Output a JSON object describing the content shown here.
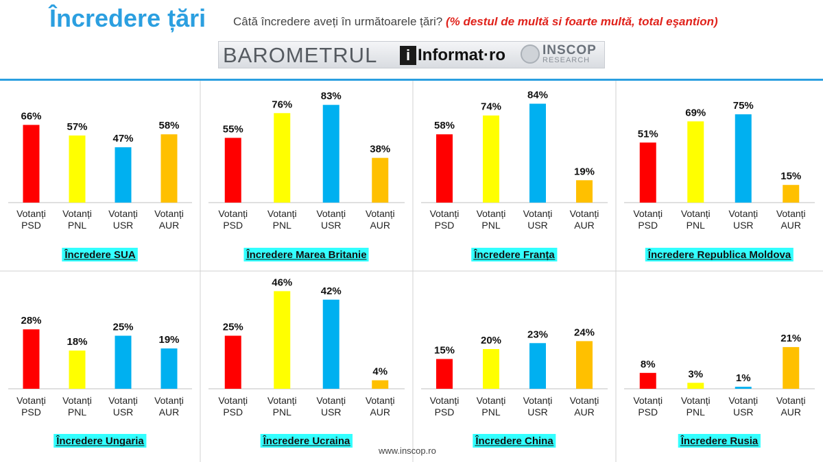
{
  "header": {
    "title": "Încredere țări",
    "question": "Câtă încredere aveți în următoarele țări?",
    "note": "(%  destul de multă si foarte multă,  total eşantion)"
  },
  "logos": {
    "barometrul": "BAROMETRUL",
    "informat_i": "i",
    "informat_text": "Informat·ro",
    "inscop": "INSCOP",
    "inscop_sub": "RESEARCH"
  },
  "footer": {
    "url": "www.inscop.ro"
  },
  "colors": {
    "PSD": "#ff0000",
    "PNL": "#ffff00",
    "USR": "#00b0f0",
    "AUR": "#ffc000",
    "title_bg": "#33ffff"
  },
  "chart_data": [
    {
      "type": "bar",
      "title": "Încredere SUA",
      "categories": [
        "Votanți PSD",
        "Votanți PNL",
        "Votanți USR",
        "Votanți AUR"
      ],
      "values": [
        66,
        57,
        47,
        58
      ],
      "value_labels": [
        "66%",
        "57%",
        "47%",
        "58%"
      ],
      "colors": [
        "#ff0000",
        "#ffff00",
        "#00b0f0",
        "#ffc000"
      ]
    },
    {
      "type": "bar",
      "title": "Încredere Marea Britanie",
      "categories": [
        "Votanți PSD",
        "Votanți PNL",
        "Votanți USR",
        "Votanți AUR"
      ],
      "values": [
        55,
        76,
        83,
        38
      ],
      "value_labels": [
        "55%",
        "76%",
        "83%",
        "38%"
      ],
      "colors": [
        "#ff0000",
        "#ffff00",
        "#00b0f0",
        "#ffc000"
      ]
    },
    {
      "type": "bar",
      "title": "Încredere Franța",
      "categories": [
        "Votanți PSD",
        "Votanți PNL",
        "Votanți USR",
        "Votanți AUR"
      ],
      "values": [
        58,
        74,
        84,
        19
      ],
      "value_labels": [
        "58%",
        "74%",
        "84%",
        "19%"
      ],
      "colors": [
        "#ff0000",
        "#ffff00",
        "#00b0f0",
        "#ffc000"
      ]
    },
    {
      "type": "bar",
      "title": "Încredere Republica Moldova",
      "categories": [
        "Votanți PSD",
        "Votanți PNL",
        "Votanți USR",
        "Votanți AUR"
      ],
      "values": [
        51,
        69,
        75,
        15
      ],
      "value_labels": [
        "51%",
        "69%",
        "75%",
        "15%"
      ],
      "colors": [
        "#ff0000",
        "#ffff00",
        "#00b0f0",
        "#ffc000"
      ]
    },
    {
      "type": "bar",
      "title": "Încredere Ungaria",
      "categories": [
        "Votanți PSD",
        "Votanți PNL",
        "Votanți USR",
        "Votanți AUR"
      ],
      "values": [
        28,
        18,
        25,
        19
      ],
      "value_labels": [
        "28%",
        "18%",
        "25%",
        "19%"
      ],
      "colors": [
        "#ff0000",
        "#ffff00",
        "#00b0f0",
        "#00b0f0"
      ]
    },
    {
      "type": "bar",
      "title": "Încredere Ucraina",
      "categories": [
        "Votanți PSD",
        "Votanți PNL",
        "Votanți USR",
        "Votanți AUR"
      ],
      "values": [
        25,
        46,
        42,
        4
      ],
      "value_labels": [
        "25%",
        "46%",
        "42%",
        "4%"
      ],
      "colors": [
        "#ff0000",
        "#ffff00",
        "#00b0f0",
        "#ffc000"
      ]
    },
    {
      "type": "bar",
      "title": "Încredere China",
      "categories": [
        "Votanți PSD",
        "Votanți PNL",
        "Votanți USR",
        "Votanți AUR"
      ],
      "values": [
        15,
        20,
        23,
        24
      ],
      "value_labels": [
        "15%",
        "20%",
        "23%",
        "24%"
      ],
      "colors": [
        "#ff0000",
        "#ffff00",
        "#00b0f0",
        "#ffc000"
      ]
    },
    {
      "type": "bar",
      "title": "Încredere Rusia",
      "categories": [
        "Votanți PSD",
        "Votanți PNL",
        "Votanți USR",
        "Votanți AUR"
      ],
      "values": [
        8,
        3,
        1,
        21
      ],
      "value_labels": [
        "8%",
        "3%",
        "1%",
        "21%"
      ],
      "colors": [
        "#ff0000",
        "#ffff00",
        "#00b0f0",
        "#ffc000"
      ]
    }
  ]
}
